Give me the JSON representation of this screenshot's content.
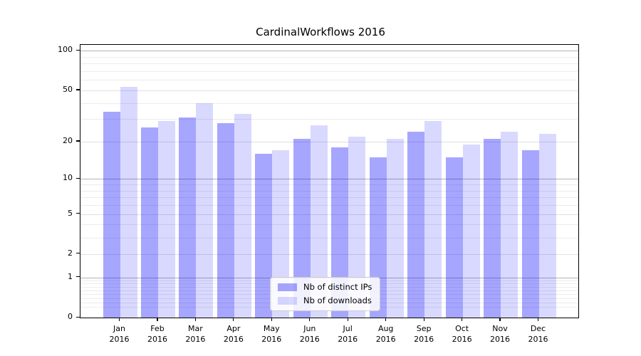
{
  "chart_data": {
    "type": "bar",
    "title": "CardinalWorkflows 2016",
    "categories": [
      "Jan",
      "Feb",
      "Mar",
      "Apr",
      "May",
      "Jun",
      "Jul",
      "Aug",
      "Sep",
      "Oct",
      "Nov",
      "Dec"
    ],
    "category_year_line": "2016",
    "series": [
      {
        "name": "Nb of distinct IPs",
        "color": "rgba(0,0,255,0.35)",
        "values": [
          34,
          26,
          31,
          28,
          16,
          21,
          18,
          15,
          24,
          15,
          21,
          17
        ]
      },
      {
        "name": "Nb of downloads",
        "color": "rgba(0,0,255,0.15)",
        "values": [
          53,
          29,
          40,
          33,
          17,
          27,
          22,
          21,
          29,
          19,
          24,
          23
        ]
      }
    ],
    "xlabel": "",
    "ylabel": "",
    "yscale": "log1p",
    "ylim": [
      0,
      111
    ],
    "y_ticks": [
      0,
      1,
      2,
      5,
      10,
      20,
      50,
      100
    ],
    "y_minor_ticks": [
      0.2,
      0.3,
      0.4,
      0.5,
      0.6,
      0.7,
      0.8,
      0.9,
      3,
      4,
      6,
      7,
      8,
      9,
      30,
      40,
      60,
      70,
      80,
      90
    ],
    "grid": true,
    "legend_position": "lower center",
    "colors": {
      "bar_distinct_ips": "rgba(0,0,255,0.35)",
      "bar_downloads": "rgba(0,0,255,0.15)",
      "major_grid": "#b3b3b3",
      "minor_grid": "#ececec",
      "spine": "#000000",
      "text": "#000000",
      "background": "#ffffff"
    }
  }
}
